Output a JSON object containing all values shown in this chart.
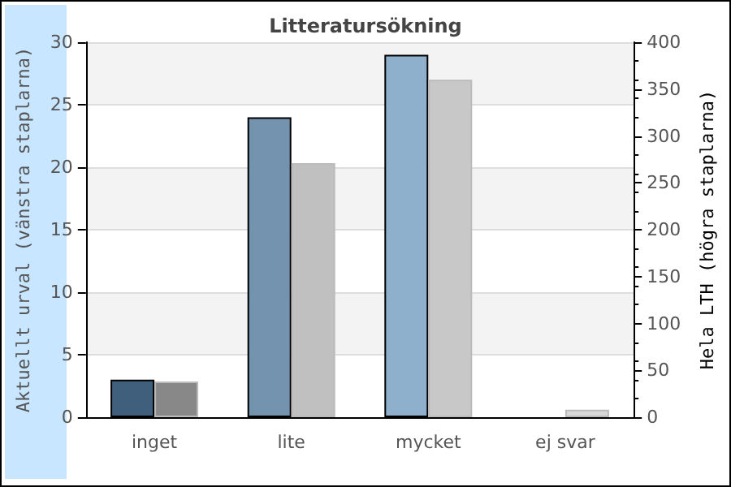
{
  "chart_data": {
    "type": "bar",
    "title": "Litteratursökning",
    "categories": [
      "inget",
      "lite",
      "mycket",
      "ej svar"
    ],
    "ylabel": "Aktuellt urval (vänstra staplarna)",
    "y2label": "Hela LTH (högra staplarna)",
    "series": [
      {
        "colors": [
          "#3f5f7c",
          "#7393ae",
          "#8fb0cd",
          null
        ],
        "values": [
          3,
          24,
          29,
          null
        ]
      },
      {
        "axis": "y2",
        "colors": [
          "#888888",
          "#c0c0c0",
          "#c8c8c8",
          "#d8d8d8"
        ],
        "values": [
          38,
          271,
          360,
          8
        ]
      }
    ],
    "ylim": [
      0,
      30
    ],
    "yticks": [
      0,
      5,
      10,
      15,
      20,
      25,
      30
    ],
    "y2lim": [
      0,
      400
    ],
    "y2ticks": [
      0,
      50,
      100,
      150,
      200,
      250,
      300,
      350,
      400
    ],
    "grid": "y"
  }
}
